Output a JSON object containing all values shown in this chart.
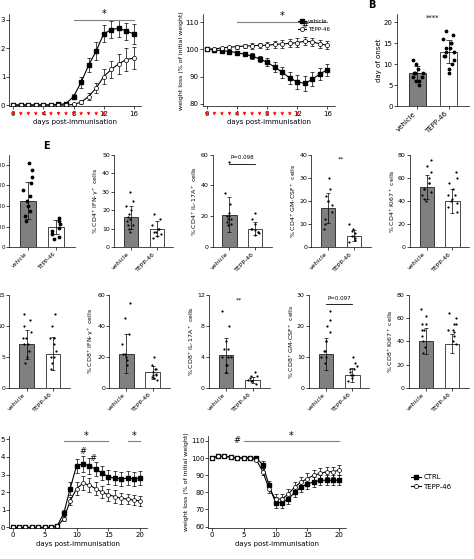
{
  "panel_A_days": [
    0,
    1,
    2,
    3,
    4,
    5,
    6,
    7,
    8,
    9,
    10,
    11,
    12,
    13,
    14,
    15,
    16
  ],
  "panel_A_vehicle_mean": [
    0.0,
    0.0,
    0.0,
    0.0,
    0.0,
    0.0,
    0.02,
    0.05,
    0.3,
    0.8,
    1.4,
    1.9,
    2.5,
    2.65,
    2.7,
    2.6,
    2.5
  ],
  "panel_A_vehicle_err": [
    0.0,
    0.0,
    0.0,
    0.0,
    0.0,
    0.0,
    0.02,
    0.05,
    0.1,
    0.2,
    0.25,
    0.3,
    0.3,
    0.3,
    0.3,
    0.3,
    0.35
  ],
  "panel_A_tepp_mean": [
    0.0,
    0.0,
    0.0,
    0.0,
    0.0,
    0.0,
    0.0,
    0.0,
    0.02,
    0.1,
    0.3,
    0.6,
    1.0,
    1.25,
    1.45,
    1.6,
    1.65
  ],
  "panel_A_tepp_err": [
    0.0,
    0.0,
    0.0,
    0.0,
    0.0,
    0.0,
    0.0,
    0.0,
    0.02,
    0.08,
    0.12,
    0.18,
    0.25,
    0.3,
    0.35,
    0.4,
    0.4
  ],
  "panel_A_weight_days": [
    0,
    1,
    2,
    3,
    4,
    5,
    6,
    7,
    8,
    9,
    10,
    11,
    12,
    13,
    14,
    15,
    16
  ],
  "panel_A_weight_vehicle_mean": [
    100.0,
    99.8,
    99.5,
    99.2,
    98.8,
    98.2,
    97.5,
    96.5,
    95.2,
    93.5,
    91.5,
    89.5,
    88.0,
    87.5,
    89.0,
    91.0,
    92.5
  ],
  "panel_A_weight_vehicle_err": [
    0.3,
    0.4,
    0.5,
    0.6,
    0.7,
    0.8,
    1.0,
    1.2,
    1.5,
    1.8,
    2.0,
    2.3,
    2.5,
    2.8,
    2.5,
    2.3,
    2.2
  ],
  "panel_A_weight_tepp_mean": [
    100.0,
    100.2,
    100.5,
    100.8,
    101.0,
    101.2,
    101.3,
    101.5,
    101.5,
    101.8,
    102.0,
    102.2,
    102.5,
    103.0,
    102.8,
    102.0,
    101.5
  ],
  "panel_A_weight_tepp_err": [
    0.3,
    0.4,
    0.5,
    0.6,
    0.7,
    0.8,
    1.0,
    1.0,
    1.2,
    1.3,
    1.5,
    1.5,
    1.5,
    1.5,
    1.5,
    1.5,
    1.5
  ],
  "panel_A_red_arrow_days": [
    0,
    1,
    2,
    3,
    4,
    5,
    6,
    7,
    8,
    9,
    10,
    11,
    12
  ],
  "panel_B_vehicle_mean": 8.0,
  "panel_B_tepp_mean": 13.0,
  "panel_B_vehicle_dots": [
    5,
    6,
    6,
    7,
    7,
    8,
    8,
    8,
    9,
    10,
    11
  ],
  "panel_B_tepp_dots": [
    8,
    9,
    10,
    11,
    12,
    12,
    13,
    13,
    14,
    14,
    15,
    15,
    16,
    17,
    18
  ],
  "panel_C_vehicle_mean": 450000,
  "panel_C_tepp_mean": 195000,
  "panel_C_vehicle_dots": [
    820000,
    750000,
    680000,
    620000,
    560000,
    500000,
    450000,
    400000,
    350000,
    300000,
    250000
  ],
  "panel_C_tepp_dots": [
    280000,
    250000,
    220000,
    190000,
    160000,
    130000,
    100000,
    80000
  ],
  "panel_E_cd4ifng_v_mean": 16.0,
  "panel_E_cd4ifng_t_mean": 10.0,
  "panel_E_cd4ifng_v_dots": [
    30,
    25,
    22,
    18,
    16,
    14,
    12,
    10,
    8,
    20,
    15,
    12
  ],
  "panel_E_cd4ifng_t_dots": [
    18,
    15,
    12,
    10,
    8,
    6,
    5,
    8,
    10,
    7
  ],
  "panel_E_cd4il17_v_mean": 21.0,
  "panel_E_cd4il17_t_mean": 12.0,
  "panel_E_cd4il17_v_dots": [
    55,
    35,
    28,
    22,
    20,
    18,
    16,
    15,
    14,
    20,
    18
  ],
  "panel_E_cd4il17_t_dots": [
    22,
    18,
    15,
    12,
    10,
    9,
    8,
    10,
    12,
    11
  ],
  "panel_E_cd4gmcsf_v_mean": 17.0,
  "panel_E_cd4gmcsf_t_mean": 5.0,
  "panel_E_cd4gmcsf_v_dots": [
    30,
    25,
    22,
    20,
    18,
    15,
    12,
    10,
    8,
    20
  ],
  "panel_E_cd4gmcsf_t_dots": [
    10,
    8,
    6,
    5,
    4,
    3,
    2,
    5,
    7
  ],
  "panel_E_cd4ki67_v_mean": 52.0,
  "panel_E_cd4ki67_t_mean": 40.0,
  "panel_E_cd4ki67_v_dots": [
    75,
    70,
    65,
    60,
    55,
    50,
    48,
    45,
    42,
    40,
    55,
    50
  ],
  "panel_E_cd4ki67_t_dots": [
    65,
    60,
    55,
    50,
    45,
    40,
    35,
    30,
    42,
    38,
    45
  ],
  "panel_D_foxp3_v_mean": 7.0,
  "panel_D_foxp3_t_mean": 5.5,
  "panel_D_foxp3_v_dots": [
    12,
    11,
    10,
    9,
    8,
    7,
    6,
    5,
    4,
    7,
    8
  ],
  "panel_D_foxp3_t_dots": [
    12,
    10,
    8,
    6,
    5,
    4,
    3,
    7,
    5,
    8
  ],
  "panel_D_cd8ifng_v_mean": 22.0,
  "panel_D_cd8ifng_t_mean": 10.0,
  "panel_D_cd8ifng_v_dots": [
    55,
    45,
    35,
    28,
    22,
    18,
    15,
    20,
    22
  ],
  "panel_D_cd8ifng_t_dots": [
    20,
    15,
    12,
    10,
    8,
    6,
    5,
    9,
    7,
    12,
    8
  ],
  "panel_D_cd8il17_v_mean": 4.2,
  "panel_D_cd8il17_t_mean": 1.0,
  "panel_D_cd8il17_v_dots": [
    10,
    8,
    6,
    5,
    4,
    3,
    2,
    4,
    5,
    3,
    4
  ],
  "panel_D_cd8il17_t_dots": [
    2,
    1.5,
    1,
    0.8,
    0.5,
    1.2,
    0.9,
    1.5
  ],
  "panel_D_cd8gmcsf_v_mean": 11.0,
  "panel_D_cd8gmcsf_t_mean": 4.0,
  "panel_D_cd8gmcsf_v_dots": [
    25,
    22,
    18,
    15,
    12,
    10,
    8,
    12,
    15,
    10,
    20
  ],
  "panel_D_cd8gmcsf_t_dots": [
    10,
    8,
    6,
    4,
    3,
    5,
    7,
    4,
    6,
    2
  ],
  "panel_D_cd8ki67_v_mean": 40.0,
  "panel_D_cd8ki67_t_mean": 38.0,
  "panel_D_cd8ki67_v_dots": [
    68,
    62,
    55,
    50,
    45,
    40,
    35,
    30,
    55,
    50
  ],
  "panel_D_cd8ki67_t_dots": [
    65,
    60,
    55,
    50,
    45,
    40,
    38,
    55,
    50,
    48
  ],
  "panel_F_days": [
    0,
    1,
    2,
    3,
    4,
    5,
    6,
    7,
    8,
    9,
    10,
    11,
    12,
    13,
    14,
    15,
    16,
    17,
    18,
    19,
    20
  ],
  "panel_F_ctrl_mean": [
    0,
    0,
    0,
    0,
    0,
    0,
    0,
    0.1,
    0.8,
    2.2,
    3.5,
    3.6,
    3.5,
    3.3,
    3.1,
    2.85,
    2.8,
    2.75,
    2.8,
    2.75,
    2.8
  ],
  "panel_F_ctrl_err": [
    0,
    0,
    0,
    0,
    0,
    0,
    0,
    0.05,
    0.2,
    0.35,
    0.4,
    0.45,
    0.45,
    0.4,
    0.4,
    0.4,
    0.4,
    0.4,
    0.4,
    0.4,
    0.4
  ],
  "panel_F_tepp_mean": [
    0,
    0,
    0,
    0,
    0,
    0,
    0,
    0.05,
    0.5,
    1.5,
    2.2,
    2.5,
    2.4,
    2.2,
    2.0,
    1.85,
    1.75,
    1.65,
    1.6,
    1.55,
    1.5
  ],
  "panel_F_tepp_err": [
    0,
    0,
    0,
    0,
    0,
    0,
    0,
    0.03,
    0.15,
    0.25,
    0.35,
    0.4,
    0.4,
    0.35,
    0.35,
    0.35,
    0.35,
    0.3,
    0.3,
    0.3,
    0.3
  ],
  "panel_F_weight_ctrl_mean": [
    100,
    101,
    101,
    100.5,
    100,
    100,
    100,
    100,
    96,
    84,
    74,
    74,
    76,
    80,
    83,
    85,
    86,
    87,
    87,
    87,
    87
  ],
  "panel_F_weight_ctrl_err": [
    0.3,
    0.5,
    0.5,
    0.5,
    0.5,
    0.5,
    0.5,
    1,
    2,
    2.5,
    3,
    3,
    3,
    3,
    3,
    3,
    3,
    3,
    3,
    3,
    3
  ],
  "panel_F_weight_tepp_mean": [
    100,
    101,
    101,
    100.5,
    100,
    100,
    100,
    99,
    92,
    82,
    76,
    76,
    79,
    83,
    86,
    88,
    90,
    91,
    92,
    92,
    93
  ],
  "panel_F_weight_tepp_err": [
    0.3,
    0.5,
    0.5,
    0.5,
    0.5,
    0.5,
    0.5,
    1,
    2,
    2.5,
    3,
    3,
    3,
    3,
    3,
    3,
    3,
    3,
    3,
    3,
    3
  ],
  "bar_color_vehicle": "#808080",
  "bar_color_tepp": "#ffffff"
}
